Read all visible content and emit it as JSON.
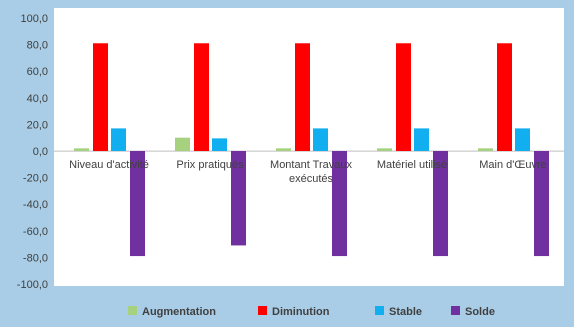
{
  "chart_data": {
    "type": "bar",
    "title": "",
    "xlabel": "",
    "ylabel": "",
    "categories": [
      "Niveau d'activité",
      "Prix pratiqués",
      "Montant Travaux exécutés",
      "Matériel utilisé",
      "Main d'Œuvre"
    ],
    "category_label_lines": [
      [
        "Niveau d'activité"
      ],
      [
        "Prix pratiqués"
      ],
      [
        "Montant Travaux",
        "exécutés"
      ],
      [
        "Matériel utilisé"
      ],
      [
        "Main d'Œuvre"
      ]
    ],
    "series": [
      {
        "name": "Augmentation",
        "color": "#a6d17f",
        "values": [
          2.0,
          10.0,
          2.0,
          2.0,
          2.0
        ]
      },
      {
        "name": "Diminution",
        "color": "#ff0000",
        "values": [
          81.0,
          81.0,
          81.0,
          81.0,
          81.0
        ]
      },
      {
        "name": "Stable",
        "color": "#11aef0",
        "values": [
          17.0,
          9.5,
          17.0,
          17.0,
          17.0
        ]
      },
      {
        "name": "Solde",
        "color": "#7030a0",
        "values": [
          -79.0,
          -71.0,
          -79.0,
          -79.0,
          -79.0
        ]
      }
    ],
    "ylim": [
      -100,
      100
    ],
    "yticks": [
      -100,
      -80,
      -60,
      -40,
      -20,
      0,
      20,
      40,
      60,
      80,
      100
    ],
    "ytick_labels": [
      "-100,0",
      "-80,0",
      "-60,0",
      "-40,0",
      "-20,0",
      "0,0",
      "20,0",
      "40,0",
      "60,0",
      "80,0",
      "100,0"
    ],
    "grid": false,
    "legend_position": "bottom",
    "plot_background": "#ffffff",
    "frame_background": "#a9cde6"
  }
}
